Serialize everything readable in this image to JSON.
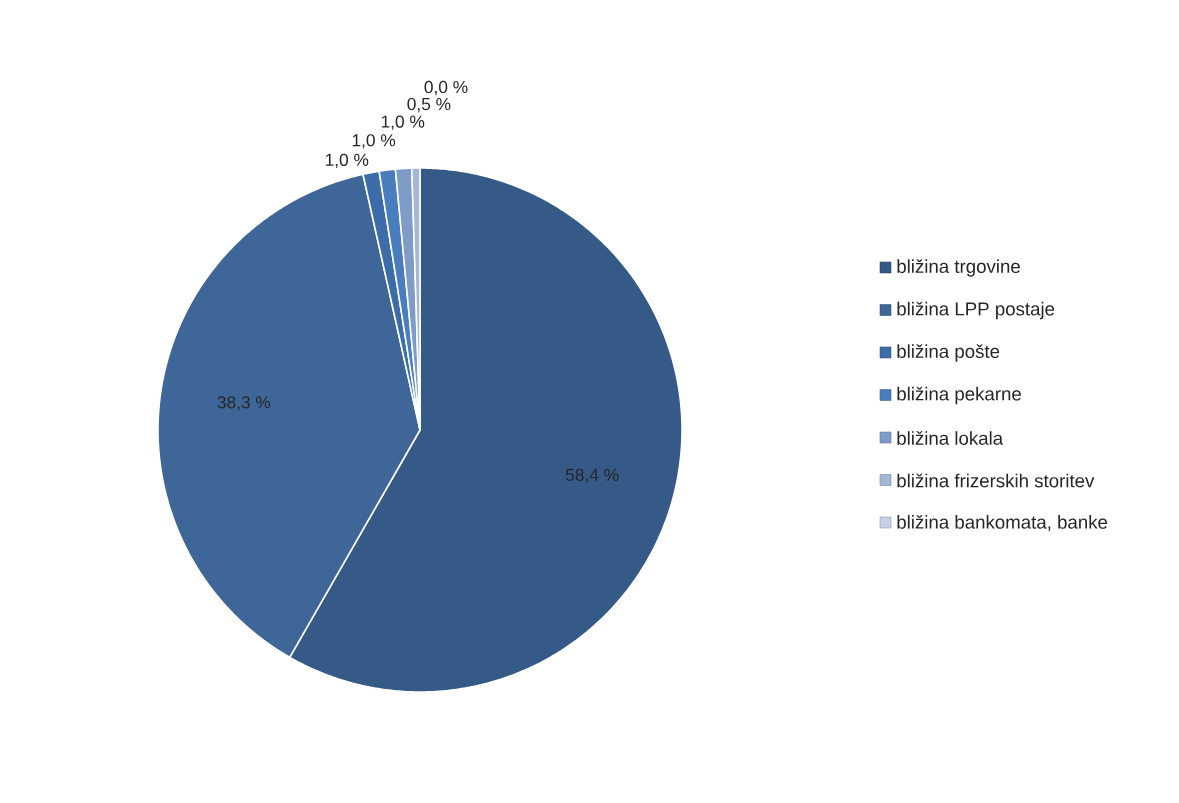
{
  "chart_data": {
    "type": "pie",
    "categories": [
      "bližina trgovine",
      "bližina LPP postaje",
      "bližina pošte",
      "bližina pekarne",
      "bližina lokala",
      "bližina frizerskih storitev",
      "bližina bankomata, banke"
    ],
    "values": [
      58.4,
      38.3,
      1.0,
      1.0,
      1.0,
      0.5,
      0.0
    ],
    "value_labels": [
      "58,4 %",
      "38,3 %",
      "1,0 %",
      "1,0 %",
      "1,0 %",
      "0,5 %",
      "0,0 %"
    ],
    "colors": [
      "#355a87",
      "#3e6699",
      "#3d6da8",
      "#4a7dbd",
      "#7f9cc9",
      "#a4b7d9",
      "#c6d1e7"
    ],
    "legend": "right"
  }
}
